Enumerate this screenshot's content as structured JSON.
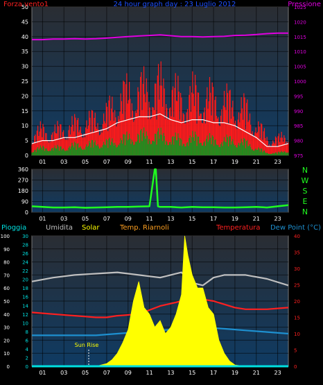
{
  "colors": {
    "background": "#000000",
    "plot_bg_top": "#2a2d33",
    "plot_bg_bottom": "#0f3b63",
    "wind": "#ff1a1a",
    "wind_avg": "#ffffff",
    "wind_low": "#1e8f1e",
    "pressure": "#e000e0",
    "direction": "#20ff20",
    "humidity": "#c0c0c0",
    "solar": "#ffff00",
    "temp_riarnoli": "#ffa020",
    "temperature": "#ff2020",
    "dew_point": "#1e90d0",
    "rain": "#00e0e0",
    "axis_text": "#ffffff",
    "title_text": "#1e50ff"
  },
  "top_panel": {
    "title": "24 hour graph day : 23 Luglio 2012",
    "left_label": "Forza vento1",
    "right_label": "Pressione"
  },
  "mid_panel": {
    "compass": [
      "N",
      "W",
      "S",
      "E",
      "N"
    ]
  },
  "bottom_panel": {
    "legend": [
      {
        "key": "rain",
        "label": "Pioggia"
      },
      {
        "key": "humidity",
        "label": "Umidita"
      },
      {
        "key": "solar",
        "label": "Solar"
      },
      {
        "key": "temp_riarnoli",
        "label": "Temp. Riarnoli"
      },
      {
        "key": "temperature",
        "label": "Temperatura"
      },
      {
        "key": "dew_point",
        "label": "Dew Point (°C)"
      }
    ],
    "annotation": "Sun Rise"
  },
  "chart_data": [
    {
      "type": "line",
      "panel": "wind_pressure",
      "title": "24 hour graph day : 23 Luglio 2012",
      "x_ticks": [
        "01",
        "03",
        "05",
        "07",
        "09",
        "11",
        "13",
        "15",
        "17",
        "19",
        "21",
        "23"
      ],
      "xlim": [
        0,
        24
      ],
      "ylim_left": [
        0,
        50
      ],
      "y_ticks_left": [
        0,
        5,
        10,
        15,
        20,
        25,
        30,
        35,
        40,
        45,
        50
      ],
      "ylim_right": [
        975,
        1025
      ],
      "y_ticks_right": [
        975,
        980,
        985,
        990,
        995,
        1000,
        1005,
        1010,
        1015,
        1020,
        1025
      ],
      "grid": true,
      "series": [
        {
          "name": "Forza vento1",
          "axis": "left",
          "key": "wind",
          "x": [
            0,
            1,
            2,
            3,
            4,
            5,
            6,
            7,
            8,
            9,
            10,
            11,
            12,
            13,
            14,
            15,
            16,
            17,
            18,
            19,
            20,
            21,
            22,
            23,
            24
          ],
          "y": [
            8,
            10,
            9,
            11,
            12,
            13,
            14,
            16,
            22,
            24,
            25,
            26,
            27,
            25,
            22,
            24,
            23,
            22,
            21,
            20,
            18,
            12,
            7,
            6,
            9
          ]
        },
        {
          "key": "wind_avg",
          "axis": "left",
          "x": [
            0,
            1,
            2,
            3,
            4,
            5,
            6,
            7,
            8,
            9,
            10,
            11,
            12,
            13,
            14,
            15,
            16,
            17,
            18,
            19,
            20,
            21,
            22,
            23,
            24
          ],
          "y": [
            4,
            5,
            5,
            6,
            6,
            7,
            8,
            9,
            11,
            12,
            13,
            13,
            14,
            12,
            11,
            12,
            12,
            11,
            11,
            10,
            8,
            6,
            3,
            3,
            4
          ]
        },
        {
          "key": "wind_low",
          "axis": "left",
          "x": [
            0,
            1,
            2,
            3,
            4,
            5,
            6,
            7,
            8,
            9,
            10,
            11,
            12,
            13,
            14,
            15,
            16,
            17,
            18,
            19,
            20,
            21,
            22,
            23,
            24
          ],
          "y": [
            2,
            3,
            3,
            3,
            4,
            4,
            5,
            5,
            6,
            7,
            8,
            8,
            8,
            7,
            6,
            7,
            7,
            6,
            6,
            6,
            5,
            3,
            1,
            1,
            2
          ]
        },
        {
          "name": "Pressione",
          "axis": "right",
          "key": "pressure",
          "x": [
            0,
            1,
            2,
            3,
            4,
            5,
            6,
            7,
            8,
            9,
            10,
            11,
            12,
            13,
            14,
            15,
            16,
            17,
            18,
            19,
            20,
            21,
            22,
            23,
            24
          ],
          "y": [
            1014,
            1014,
            1014.2,
            1014.2,
            1014.3,
            1014.2,
            1014.3,
            1014.5,
            1014.8,
            1015,
            1015.2,
            1015.4,
            1015.6,
            1015.3,
            1015,
            1015,
            1014.9,
            1015,
            1015.1,
            1015.4,
            1015.5,
            1015.7,
            1016,
            1016.2,
            1016.2
          ]
        }
      ]
    },
    {
      "type": "line",
      "panel": "wind_direction",
      "x_ticks": [
        "01",
        "03",
        "05",
        "07",
        "09",
        "11",
        "13",
        "15",
        "17",
        "19",
        "21",
        "23"
      ],
      "xlim": [
        0,
        24
      ],
      "ylim": [
        0,
        360
      ],
      "y_ticks": [
        0,
        90,
        180,
        270,
        360
      ],
      "grid": true,
      "series": [
        {
          "key": "direction",
          "x": [
            0,
            1,
            2,
            3,
            4,
            5,
            6,
            7,
            8,
            9,
            10,
            11,
            11.5,
            11.6,
            11.8,
            12,
            13,
            14,
            15,
            16,
            17,
            18,
            19,
            20,
            21,
            22,
            23,
            24
          ],
          "y": [
            50,
            45,
            40,
            40,
            42,
            38,
            40,
            42,
            45,
            45,
            48,
            50,
            360,
            360,
            50,
            45,
            45,
            40,
            45,
            42,
            42,
            40,
            40,
            42,
            45,
            40,
            50,
            60
          ]
        }
      ]
    },
    {
      "type": "line",
      "panel": "temperature_humidity_solar",
      "x_ticks": [
        "01",
        "03",
        "05",
        "07",
        "09",
        "11",
        "13",
        "15",
        "17",
        "19",
        "21",
        "23"
      ],
      "xlim": [
        0,
        24
      ],
      "ylim_humidity": [
        0,
        100
      ],
      "y_ticks_humidity": [
        0,
        10,
        20,
        30,
        40,
        50,
        60,
        70,
        80,
        90,
        100
      ],
      "ylim_rain": [
        0,
        30
      ],
      "y_ticks_rain": [
        0,
        2,
        4,
        6,
        8,
        10,
        12,
        14,
        16,
        18,
        20,
        22,
        24,
        26,
        28,
        30
      ],
      "ylim_temp": [
        0,
        40
      ],
      "y_ticks_temp": [
        0,
        5,
        10,
        15,
        20,
        25,
        30,
        35,
        40
      ],
      "grid": true,
      "series": [
        {
          "name": "Umidita",
          "key": "humidity",
          "axis": "humidity",
          "x": [
            0,
            2,
            4,
            6,
            8,
            10,
            12,
            14,
            15,
            16,
            17,
            18,
            20,
            22,
            24
          ],
          "y": [
            65,
            68,
            70,
            71,
            72,
            70,
            68,
            72,
            64,
            62,
            68,
            70,
            70,
            67,
            62
          ]
        },
        {
          "name": "Temperatura",
          "key": "temperature",
          "axis": "temp",
          "x": [
            0,
            2,
            4,
            6,
            7,
            8,
            10,
            12,
            14,
            15,
            16,
            17,
            18,
            19,
            20,
            22,
            24
          ],
          "y": [
            16.5,
            16,
            15.5,
            15,
            15,
            15.5,
            16,
            18.5,
            20,
            21.5,
            20.5,
            20,
            19,
            18,
            17.5,
            17.5,
            18
          ]
        },
        {
          "name": "Dew Point (°C)",
          "key": "dew_point",
          "axis": "temp",
          "x": [
            0,
            2,
            4,
            6,
            8,
            10,
            12,
            14,
            16,
            18,
            20,
            22,
            24
          ],
          "y": [
            9.5,
            9.5,
            9.5,
            9.5,
            10,
            10.5,
            11,
            11.5,
            12,
            11.5,
            11,
            10.5,
            10
          ]
        },
        {
          "name": "Solar",
          "key": "solar",
          "axis": "humidity",
          "x": [
            0,
            5,
            6,
            7,
            7.5,
            8,
            8.5,
            9,
            9.5,
            10,
            10.5,
            11,
            11.5,
            12,
            12.5,
            13,
            13.5,
            14,
            14.3,
            14.6,
            15,
            15.5,
            16,
            16.5,
            17,
            17.5,
            18,
            18.5,
            19,
            20,
            24
          ],
          "y": [
            0,
            0,
            0,
            2,
            5,
            10,
            18,
            28,
            50,
            65,
            45,
            40,
            30,
            35,
            25,
            30,
            40,
            55,
            100,
            85,
            70,
            60,
            60,
            45,
            40,
            20,
            10,
            4,
            1,
            0,
            0
          ]
        },
        {
          "name": "Pioggia",
          "key": "rain",
          "axis": "rain",
          "x": [
            0,
            24
          ],
          "y": [
            0,
            0
          ]
        }
      ]
    }
  ]
}
